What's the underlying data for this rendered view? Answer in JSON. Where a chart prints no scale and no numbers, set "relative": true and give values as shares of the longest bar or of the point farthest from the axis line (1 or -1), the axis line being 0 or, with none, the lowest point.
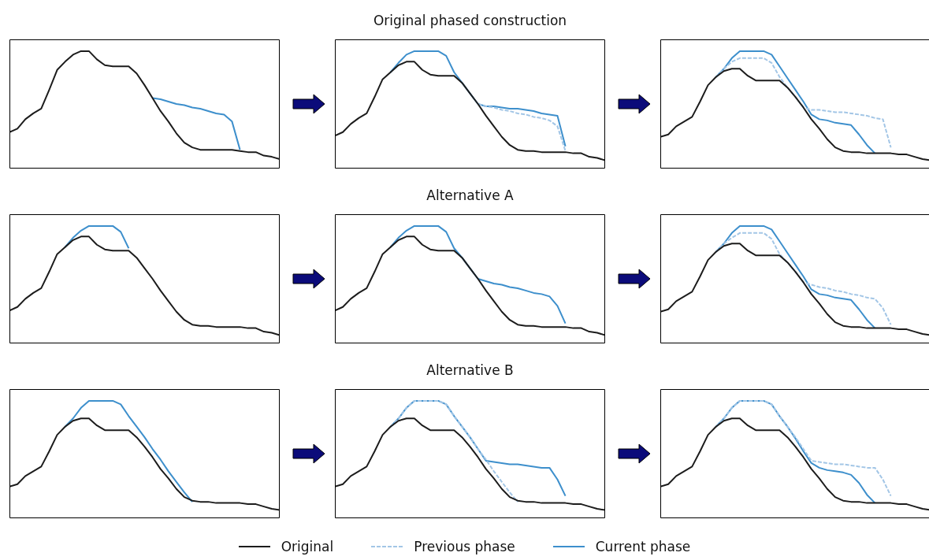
{
  "chart_data": [
    {
      "type": "line",
      "relative": true,
      "tick_labels": false,
      "marker": "none",
      "categories": [
        null,
        null,
        null,
        null,
        null,
        null,
        null,
        null,
        null,
        null,
        null,
        null,
        null,
        null,
        null,
        null,
        null,
        null,
        null,
        null,
        null,
        null,
        null,
        null,
        null,
        null,
        null,
        null,
        null,
        null,
        null,
        null,
        null,
        null,
        null
      ],
      "series": [
        {
          "color": "#1c1c1c",
          "values": [
            0.31,
            0.34,
            0.42,
            0.47,
            0.51,
            0.67,
            0.84,
            0.91,
            0.97,
            1,
            1,
            0.93,
            0.88,
            0.87,
            0.87,
            0.87,
            0.81,
            0.71,
            0.6,
            0.49,
            0.4,
            0.3,
            0.22,
            0.18,
            0.16,
            0.16,
            0.16,
            0.16,
            0.16,
            0.15,
            0.14,
            0.14,
            0.11,
            0.1,
            0.08
          ]
        },
        {
          "color": "#3d8fcc",
          "values": [
            null,
            null,
            null,
            null,
            null,
            null,
            null,
            null,
            null,
            null,
            null,
            null,
            null,
            null,
            null,
            null,
            null,
            null,
            0.6,
            0.59,
            0.57,
            0.55,
            0.54,
            0.52,
            0.51,
            0.49,
            0.47,
            0.46,
            0.4,
            0.16,
            null,
            null,
            null,
            null,
            null
          ]
        }
      ]
    },
    {
      "type": "line",
      "relative": true,
      "tick_labels": false,
      "marker": "none",
      "title": "Original phased construction",
      "categories": [
        null,
        null,
        null,
        null,
        null,
        null,
        null,
        null,
        null,
        null,
        null,
        null,
        null,
        null,
        null,
        null,
        null,
        null,
        null,
        null,
        null,
        null,
        null,
        null,
        null,
        null,
        null,
        null,
        null,
        null,
        null,
        null,
        null,
        null,
        null
      ],
      "series": [
        {
          "color": "#1c1c1c",
          "values": [
            0.28,
            0.31,
            0.38,
            0.43,
            0.47,
            0.61,
            0.76,
            0.82,
            0.88,
            0.91,
            0.91,
            0.84,
            0.8,
            0.79,
            0.79,
            0.79,
            0.73,
            0.64,
            0.55,
            0.45,
            0.36,
            0.27,
            0.2,
            0.16,
            0.15,
            0.15,
            0.14,
            0.14,
            0.14,
            0.14,
            0.13,
            0.13,
            0.1,
            0.09,
            0.07
          ]
        },
        {
          "color": "#a3c6e6",
          "line_style": "dashed",
          "values": [
            null,
            null,
            null,
            null,
            null,
            null,
            null,
            null,
            null,
            null,
            null,
            null,
            null,
            null,
            null,
            null,
            null,
            null,
            0.55,
            0.53,
            0.52,
            0.5,
            0.49,
            0.47,
            0.46,
            0.44,
            0.43,
            0.41,
            0.36,
            0.15,
            null,
            null,
            null,
            null,
            null
          ]
        },
        {
          "color": "#3d8fcc",
          "values": [
            null,
            null,
            null,
            null,
            null,
            null,
            null,
            0.82,
            0.9,
            0.97,
            1,
            1,
            1,
            1,
            0.96,
            0.82,
            0.73,
            0.64,
            0.55,
            0.53,
            0.53,
            0.52,
            0.51,
            0.51,
            0.5,
            0.49,
            0.47,
            0.46,
            0.45,
            0.19,
            null,
            null,
            null,
            null,
            null
          ]
        }
      ]
    },
    {
      "type": "line",
      "relative": true,
      "tick_labels": false,
      "marker": "none",
      "categories": [
        null,
        null,
        null,
        null,
        null,
        null,
        null,
        null,
        null,
        null,
        null,
        null,
        null,
        null,
        null,
        null,
        null,
        null,
        null,
        null,
        null,
        null,
        null,
        null,
        null,
        null,
        null,
        null,
        null,
        null,
        null,
        null,
        null,
        null,
        null
      ],
      "series": [
        {
          "color": "#1c1c1c",
          "values": [
            0.27,
            0.29,
            0.36,
            0.4,
            0.44,
            0.57,
            0.71,
            0.78,
            0.83,
            0.85,
            0.85,
            0.79,
            0.75,
            0.75,
            0.75,
            0.75,
            0.69,
            0.61,
            0.52,
            0.42,
            0.34,
            0.25,
            0.18,
            0.15,
            0.14,
            0.14,
            0.13,
            0.13,
            0.13,
            0.13,
            0.12,
            0.12,
            0.1,
            0.08,
            0.07
          ]
        },
        {
          "color": "#a3c6e6",
          "line_style": "dashed",
          "values": [
            null,
            null,
            null,
            null,
            null,
            null,
            null,
            0.78,
            0.85,
            0.91,
            0.94,
            0.94,
            0.94,
            0.94,
            0.9,
            0.78,
            0.69,
            0.61,
            0.52,
            0.5,
            0.5,
            0.49,
            0.48,
            0.48,
            0.47,
            0.46,
            0.45,
            0.43,
            0.42,
            0.18,
            null,
            null,
            null,
            null,
            null
          ]
        },
        {
          "color": "#3d8fcc",
          "values": [
            null,
            null,
            null,
            null,
            null,
            null,
            null,
            0.78,
            0.85,
            0.94,
            1,
            1,
            1,
            1,
            0.97,
            0.87,
            0.77,
            0.67,
            0.57,
            0.46,
            0.42,
            0.41,
            0.39,
            0.38,
            0.37,
            0.29,
            0.2,
            0.13,
            null,
            null,
            null,
            null,
            null,
            null,
            null
          ]
        }
      ]
    },
    {
      "type": "line",
      "relative": true,
      "tick_labels": false,
      "marker": "none",
      "categories": [
        null,
        null,
        null,
        null,
        null,
        null,
        null,
        null,
        null,
        null,
        null,
        null,
        null,
        null,
        null,
        null,
        null,
        null,
        null,
        null,
        null,
        null,
        null,
        null,
        null,
        null,
        null,
        null,
        null,
        null,
        null,
        null,
        null,
        null,
        null
      ],
      "series": [
        {
          "color": "#1c1c1c",
          "values": [
            0.28,
            0.31,
            0.38,
            0.43,
            0.47,
            0.61,
            0.76,
            0.82,
            0.88,
            0.91,
            0.91,
            0.84,
            0.8,
            0.79,
            0.79,
            0.79,
            0.73,
            0.64,
            0.55,
            0.45,
            0.36,
            0.27,
            0.2,
            0.16,
            0.15,
            0.15,
            0.14,
            0.14,
            0.14,
            0.14,
            0.13,
            0.13,
            0.1,
            0.09,
            0.07
          ]
        },
        {
          "color": "#3d8fcc",
          "values": [
            null,
            null,
            null,
            null,
            null,
            null,
            null,
            0.82,
            0.9,
            0.96,
            1,
            1,
            1,
            1,
            0.95,
            0.81,
            null,
            null,
            null,
            null,
            null,
            null,
            null,
            null,
            null,
            null,
            null,
            null,
            null,
            null,
            null,
            null,
            null,
            null,
            null
          ]
        }
      ]
    },
    {
      "type": "line",
      "relative": true,
      "tick_labels": false,
      "marker": "none",
      "title": "Alternative A",
      "categories": [
        null,
        null,
        null,
        null,
        null,
        null,
        null,
        null,
        null,
        null,
        null,
        null,
        null,
        null,
        null,
        null,
        null,
        null,
        null,
        null,
        null,
        null,
        null,
        null,
        null,
        null,
        null,
        null,
        null,
        null,
        null,
        null,
        null,
        null,
        null
      ],
      "series": [
        {
          "color": "#1c1c1c",
          "values": [
            0.28,
            0.31,
            0.38,
            0.43,
            0.47,
            0.61,
            0.76,
            0.82,
            0.88,
            0.91,
            0.91,
            0.84,
            0.8,
            0.79,
            0.79,
            0.79,
            0.73,
            0.64,
            0.55,
            0.45,
            0.36,
            0.27,
            0.2,
            0.16,
            0.15,
            0.15,
            0.14,
            0.14,
            0.14,
            0.14,
            0.13,
            0.13,
            0.1,
            0.09,
            0.07
          ]
        },
        {
          "color": "#3d8fcc",
          "values": [
            null,
            null,
            null,
            null,
            null,
            null,
            null,
            0.82,
            0.9,
            0.96,
            1,
            1,
            1,
            1,
            0.95,
            0.81,
            0.73,
            0.64,
            0.55,
            0.53,
            0.51,
            0.5,
            0.48,
            0.47,
            0.45,
            0.43,
            0.42,
            0.4,
            0.32,
            0.17,
            null,
            null,
            null,
            null,
            null
          ]
        }
      ]
    },
    {
      "type": "line",
      "relative": true,
      "tick_labels": false,
      "marker": "none",
      "categories": [
        null,
        null,
        null,
        null,
        null,
        null,
        null,
        null,
        null,
        null,
        null,
        null,
        null,
        null,
        null,
        null,
        null,
        null,
        null,
        null,
        null,
        null,
        null,
        null,
        null,
        null,
        null,
        null,
        null,
        null,
        null,
        null,
        null,
        null,
        null
      ],
      "series": [
        {
          "color": "#1c1c1c",
          "values": [
            0.27,
            0.29,
            0.36,
            0.4,
            0.44,
            0.57,
            0.71,
            0.78,
            0.83,
            0.85,
            0.85,
            0.79,
            0.75,
            0.75,
            0.75,
            0.75,
            0.69,
            0.61,
            0.52,
            0.42,
            0.34,
            0.25,
            0.18,
            0.15,
            0.14,
            0.14,
            0.13,
            0.13,
            0.13,
            0.13,
            0.12,
            0.12,
            0.1,
            0.08,
            0.07
          ]
        },
        {
          "color": "#a3c6e6",
          "line_style": "dashed",
          "values": [
            null,
            null,
            null,
            null,
            null,
            null,
            null,
            0.78,
            0.85,
            0.9,
            0.94,
            0.94,
            0.94,
            0.94,
            0.89,
            0.76,
            0.69,
            0.61,
            0.52,
            0.5,
            0.48,
            0.47,
            0.45,
            0.44,
            0.42,
            0.41,
            0.39,
            0.38,
            0.3,
            0.16,
            null,
            null,
            null,
            null,
            null
          ]
        },
        {
          "color": "#3d8fcc",
          "values": [
            null,
            null,
            null,
            null,
            null,
            null,
            null,
            0.78,
            0.85,
            0.94,
            1,
            1,
            1,
            1,
            0.97,
            0.87,
            0.77,
            0.67,
            0.57,
            0.46,
            0.42,
            0.41,
            0.39,
            0.38,
            0.37,
            0.29,
            0.2,
            0.13,
            null,
            null,
            null,
            null,
            null,
            null,
            null
          ]
        }
      ]
    },
    {
      "type": "line",
      "relative": true,
      "tick_labels": false,
      "marker": "none",
      "categories": [
        null,
        null,
        null,
        null,
        null,
        null,
        null,
        null,
        null,
        null,
        null,
        null,
        null,
        null,
        null,
        null,
        null,
        null,
        null,
        null,
        null,
        null,
        null,
        null,
        null,
        null,
        null,
        null,
        null,
        null,
        null,
        null,
        null,
        null,
        null
      ],
      "series": [
        {
          "color": "#1c1c1c",
          "values": [
            0.27,
            0.29,
            0.36,
            0.4,
            0.44,
            0.57,
            0.71,
            0.78,
            0.83,
            0.85,
            0.85,
            0.79,
            0.75,
            0.75,
            0.75,
            0.75,
            0.69,
            0.61,
            0.52,
            0.42,
            0.34,
            0.25,
            0.18,
            0.15,
            0.14,
            0.14,
            0.13,
            0.13,
            0.13,
            0.13,
            0.12,
            0.12,
            0.1,
            0.08,
            0.07
          ]
        },
        {
          "color": "#3d8fcc",
          "values": [
            null,
            null,
            null,
            null,
            null,
            null,
            null,
            0.78,
            0.85,
            0.94,
            1,
            1,
            1,
            1,
            0.97,
            0.87,
            0.78,
            0.69,
            0.59,
            0.5,
            0.4,
            0.31,
            0.22,
            0.14,
            null,
            null,
            null,
            null,
            null,
            null,
            null,
            null,
            null,
            null,
            null
          ]
        }
      ]
    },
    {
      "type": "line",
      "relative": true,
      "tick_labels": false,
      "marker": "none",
      "title": "Alternative B",
      "legend": "bottom",
      "categories": [
        null,
        null,
        null,
        null,
        null,
        null,
        null,
        null,
        null,
        null,
        null,
        null,
        null,
        null,
        null,
        null,
        null,
        null,
        null,
        null,
        null,
        null,
        null,
        null,
        null,
        null,
        null,
        null,
        null,
        null,
        null,
        null,
        null,
        null,
        null
      ],
      "series": [
        {
          "name": "Original",
          "color": "#1c1c1c",
          "values": [
            0.27,
            0.29,
            0.36,
            0.4,
            0.44,
            0.57,
            0.71,
            0.78,
            0.83,
            0.85,
            0.85,
            0.79,
            0.75,
            0.75,
            0.75,
            0.75,
            0.69,
            0.61,
            0.52,
            0.42,
            0.34,
            0.25,
            0.18,
            0.15,
            0.14,
            0.14,
            0.13,
            0.13,
            0.13,
            0.13,
            0.12,
            0.12,
            0.1,
            0.08,
            0.07
          ]
        },
        {
          "name": "Previous phase",
          "color": "#a3c6e6",
          "line_style": "dashed",
          "values": [
            null,
            null,
            null,
            null,
            null,
            null,
            null,
            0.78,
            0.85,
            0.94,
            1,
            1,
            1,
            1,
            0.97,
            0.87,
            0.78,
            0.69,
            0.59,
            0.5,
            0.4,
            0.31,
            0.22,
            0.14,
            null,
            null,
            null,
            null,
            null,
            null,
            null,
            null,
            null,
            null,
            null
          ]
        },
        {
          "name": "Current phase",
          "color": "#3d8fcc",
          "values": [
            null,
            null,
            null,
            null,
            null,
            null,
            null,
            0.78,
            0.85,
            0.94,
            1,
            1,
            1,
            1,
            0.97,
            0.87,
            0.78,
            0.69,
            0.59,
            0.49,
            0.48,
            0.47,
            0.46,
            0.46,
            0.45,
            0.44,
            0.43,
            0.43,
            0.33,
            0.19,
            null,
            null,
            null,
            null,
            null
          ]
        }
      ]
    },
    {
      "type": "line",
      "relative": true,
      "tick_labels": false,
      "marker": "none",
      "categories": [
        null,
        null,
        null,
        null,
        null,
        null,
        null,
        null,
        null,
        null,
        null,
        null,
        null,
        null,
        null,
        null,
        null,
        null,
        null,
        null,
        null,
        null,
        null,
        null,
        null,
        null,
        null,
        null,
        null,
        null,
        null,
        null,
        null,
        null,
        null
      ],
      "series": [
        {
          "color": "#1c1c1c",
          "values": [
            0.27,
            0.29,
            0.36,
            0.4,
            0.44,
            0.57,
            0.71,
            0.78,
            0.83,
            0.85,
            0.85,
            0.79,
            0.75,
            0.75,
            0.75,
            0.75,
            0.69,
            0.61,
            0.52,
            0.42,
            0.34,
            0.25,
            0.18,
            0.15,
            0.14,
            0.14,
            0.13,
            0.13,
            0.13,
            0.13,
            0.12,
            0.12,
            0.1,
            0.08,
            0.07
          ]
        },
        {
          "color": "#a3c6e6",
          "line_style": "dashed",
          "values": [
            null,
            null,
            null,
            null,
            null,
            null,
            null,
            0.78,
            0.85,
            0.94,
            1,
            1,
            1,
            1,
            0.97,
            0.87,
            0.78,
            0.69,
            0.59,
            0.49,
            0.48,
            0.47,
            0.46,
            0.46,
            0.45,
            0.44,
            0.43,
            0.43,
            0.33,
            0.19,
            null,
            null,
            null,
            null,
            null
          ]
        },
        {
          "color": "#3d8fcc",
          "values": [
            null,
            null,
            null,
            null,
            null,
            null,
            null,
            0.78,
            0.85,
            0.94,
            1,
            1,
            1,
            1,
            0.97,
            0.87,
            0.78,
            0.68,
            0.57,
            0.47,
            0.43,
            0.41,
            0.4,
            0.39,
            0.37,
            0.3,
            0.2,
            0.13,
            null,
            null,
            null,
            null,
            null,
            null,
            null
          ]
        }
      ]
    }
  ]
}
